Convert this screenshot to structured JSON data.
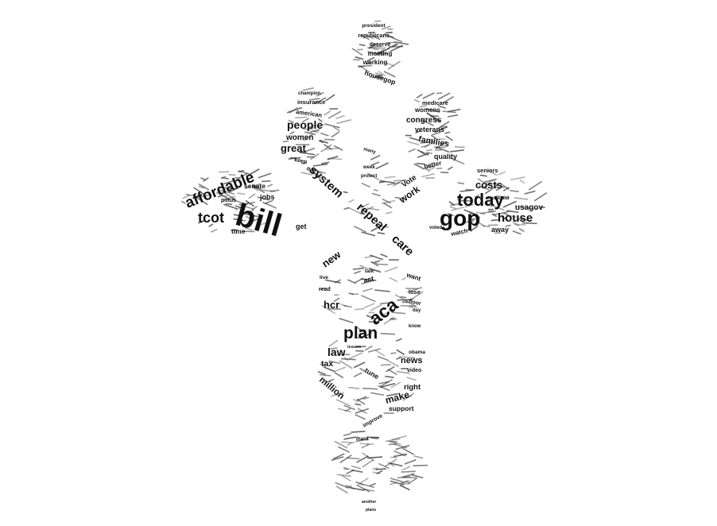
{
  "figure": {
    "type": "word-cloud",
    "shape": "caduceus",
    "ink_color": "#111111",
    "background_color": "#ffffff"
  },
  "words": {
    "president": "president",
    "republicans": "republicans",
    "deserve": "deserve",
    "meeting": "meeting",
    "working": "working",
    "housegop": "housegop",
    "champion": "champion",
    "insurance": "insurance",
    "american": "american",
    "people": "people",
    "women": "women",
    "great": "great",
    "keep": "keep",
    "thanks": "thanks",
    "affordable": "affordable",
    "system": "system",
    "senate": "senate",
    "potus": "potus",
    "jobs": "jobs",
    "tcot": "tcot",
    "bill": "bill",
    "time": "time",
    "get": "get",
    "repeal": "repeal",
    "care": "care",
    "medicare": "medicare",
    "womens": "womens",
    "congress": "congress",
    "veterans": "veterans",
    "families": "families",
    "many": "many",
    "quality": "quality",
    "better": "better",
    "seniors": "seniors",
    "week": "week",
    "protect": "protect",
    "vote": "Vote",
    "work": "work",
    "costs": "costs",
    "medicaid": "medicaid",
    "today": "today",
    "usagov": "usagov",
    "gop": "gop",
    "house": "house",
    "voted": "voted",
    "watch": "watch",
    "away": "away",
    "new": "new",
    "talk": "talk",
    "want": "want",
    "act": "act",
    "live": "live",
    "lose": "lose",
    "floor": "floor",
    "hcr": "hcr",
    "read": "read",
    "day": "day",
    "aca": "aca",
    "know": "know",
    "plan": "plan",
    "issues": "issues",
    "law": "law",
    "obama": "obama",
    "tax": "tax",
    "news": "news",
    "video": "video",
    "tune": "tune",
    "million": "million",
    "right": "right",
    "make": "make",
    "support": "support",
    "improve": "improve",
    "thank": "thank",
    "another": "another",
    "plans": "plans"
  }
}
